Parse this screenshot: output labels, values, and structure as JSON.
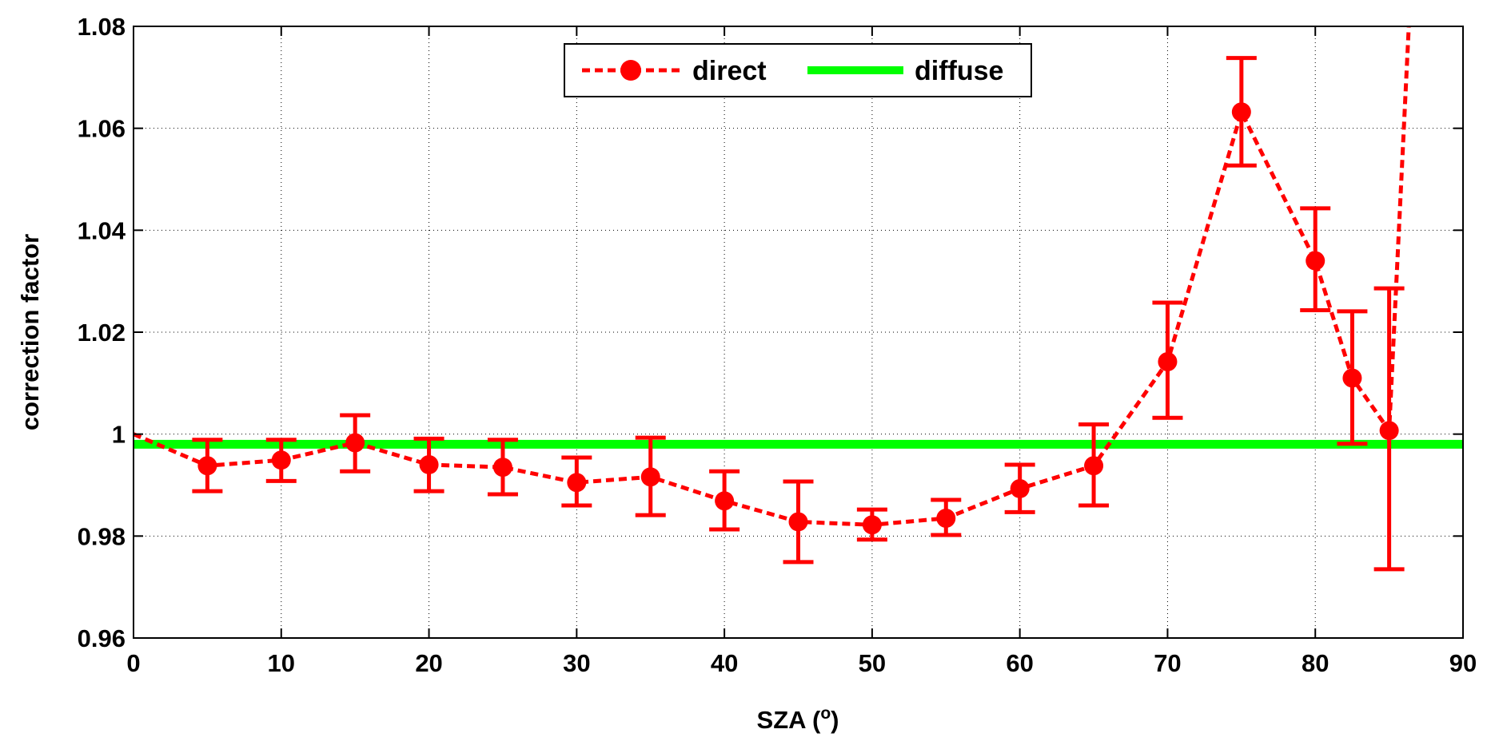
{
  "chart_data": {
    "type": "line",
    "title": "",
    "xlabel": "SZA (",
    "xlabel_sup": "o",
    "xlabel_close": ")",
    "ylabel": "correction factor",
    "xlim": [
      0,
      90
    ],
    "ylim": [
      0.96,
      1.08
    ],
    "xticks": [
      "0",
      "10",
      "20",
      "30",
      "40",
      "50",
      "60",
      "70",
      "80",
      "90"
    ],
    "yticks": [
      "0.96",
      "0.98",
      "1",
      "1.02",
      "1.04",
      "1.06",
      "1.08"
    ],
    "grid": true,
    "legend": {
      "placement": "top-center",
      "entries": [
        "direct",
        "diffuse"
      ]
    },
    "series": [
      {
        "name": "direct",
        "color": "#ff0000",
        "style": "dashed-with-markers",
        "x": [
          0,
          5,
          10,
          15,
          20,
          25,
          30,
          35,
          40,
          45,
          50,
          55,
          60,
          65,
          70,
          75,
          80,
          82.5,
          85,
          87
        ],
        "y": [
          1.0,
          0.9938,
          0.9949,
          0.9983,
          0.994,
          0.9935,
          0.9905,
          0.9916,
          0.9869,
          0.9828,
          0.9822,
          0.9835,
          0.9893,
          0.9938,
          1.0142,
          1.0632,
          1.034,
          1.011,
          1.0007,
          1.12
        ],
        "markers": [
          false,
          true,
          true,
          true,
          true,
          true,
          true,
          true,
          true,
          true,
          true,
          true,
          true,
          true,
          true,
          true,
          true,
          true,
          true,
          false
        ],
        "err_upper": [
          null,
          0.9989,
          0.9989,
          1.0037,
          0.9991,
          0.9989,
          0.9954,
          0.9993,
          0.9927,
          0.9907,
          0.9852,
          0.9871,
          0.994,
          1.0019,
          1.0258,
          1.0738,
          1.0443,
          1.0241,
          1.0286,
          null
        ],
        "err_lower": [
          null,
          0.9888,
          0.9908,
          0.9927,
          0.9888,
          0.9882,
          0.986,
          0.9841,
          0.9813,
          0.9749,
          0.9793,
          0.9802,
          0.9847,
          0.986,
          1.0032,
          1.0527,
          1.0243,
          0.9981,
          0.9735,
          null
        ]
      },
      {
        "name": "diffuse",
        "color": "#00ff00",
        "style": "solid",
        "x": [
          0,
          90
        ],
        "y": [
          0.998,
          0.998
        ]
      }
    ]
  }
}
